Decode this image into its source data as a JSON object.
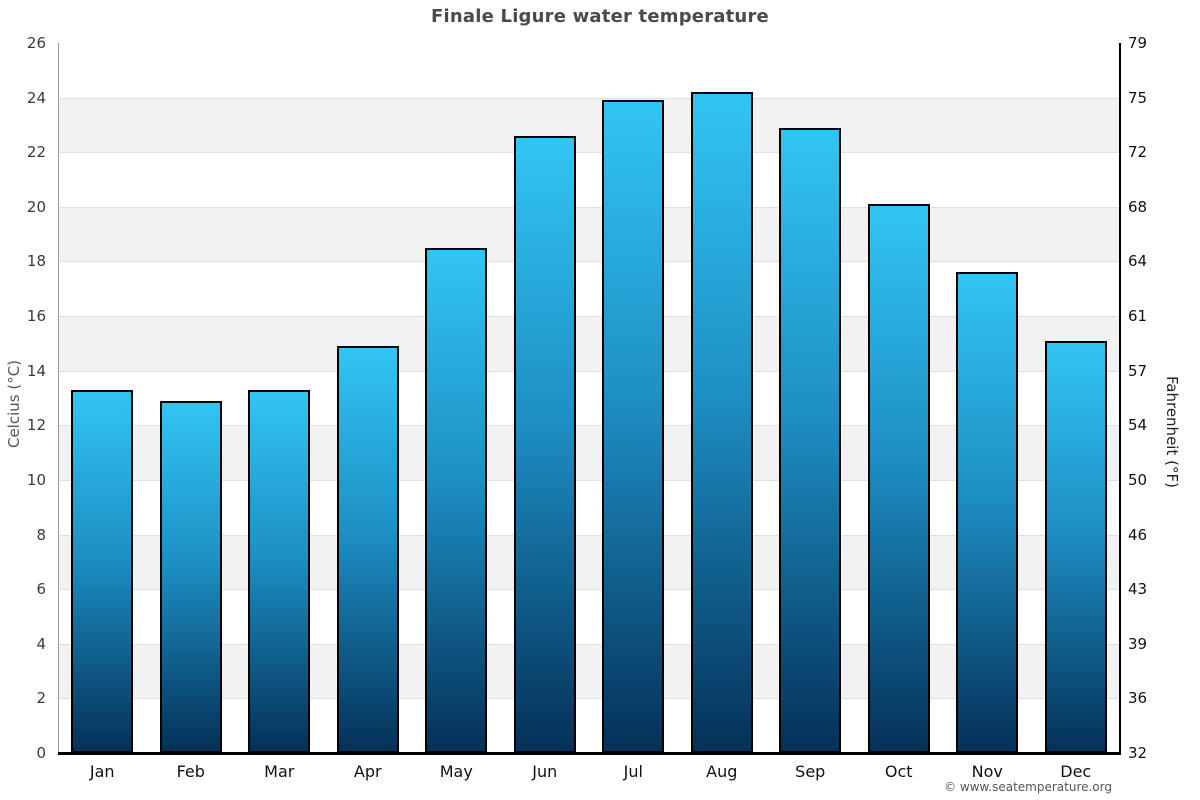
{
  "title": "Finale Ligure water temperature",
  "footer": {
    "copyright": "© www.seatemperature.org"
  },
  "chart_data": {
    "type": "bar",
    "title": "Finale Ligure water temperature",
    "categories": [
      "Jan",
      "Feb",
      "Mar",
      "Apr",
      "May",
      "Jun",
      "Jul",
      "Aug",
      "Sep",
      "Oct",
      "Nov",
      "Dec"
    ],
    "values": [
      13.3,
      12.9,
      13.3,
      14.9,
      18.5,
      22.6,
      23.9,
      24.2,
      22.9,
      20.1,
      17.6,
      15.1
    ],
    "ylabel_left": "Celcius (°C)",
    "ylabel_right": "Fahrenheit (°F)",
    "ylim": [
      0,
      26
    ],
    "yticks_celsius": [
      0,
      2,
      4,
      6,
      8,
      10,
      12,
      14,
      16,
      18,
      20,
      22,
      24,
      26
    ],
    "yticks_fahrenheit": [
      32,
      36,
      39,
      43,
      46,
      50,
      54,
      57,
      61,
      64,
      68,
      72,
      75,
      79
    ],
    "grid": true,
    "legend": false,
    "bands_alternating": true,
    "colors": {
      "bar_gradient_top": "#31c5f3",
      "bar_gradient_mid": "#1d8fc4",
      "bar_gradient_bottom": "#043158",
      "bar_border": "#000000",
      "band_alt": "#f2f2f2",
      "band_base": "#ffffff",
      "gridline": "#e0e0e0",
      "axis_left": "#999999",
      "axis_right": "#000000",
      "axis_bottom": "#000000",
      "tick_label_left": "#3a3a3a",
      "tick_label_right": "#111111",
      "month_label": "#111111",
      "title_color": "#4a4a4a",
      "ylabel_left_color": "#555555",
      "ylabel_right_color": "#222222",
      "copyright_color": "#555555"
    }
  }
}
